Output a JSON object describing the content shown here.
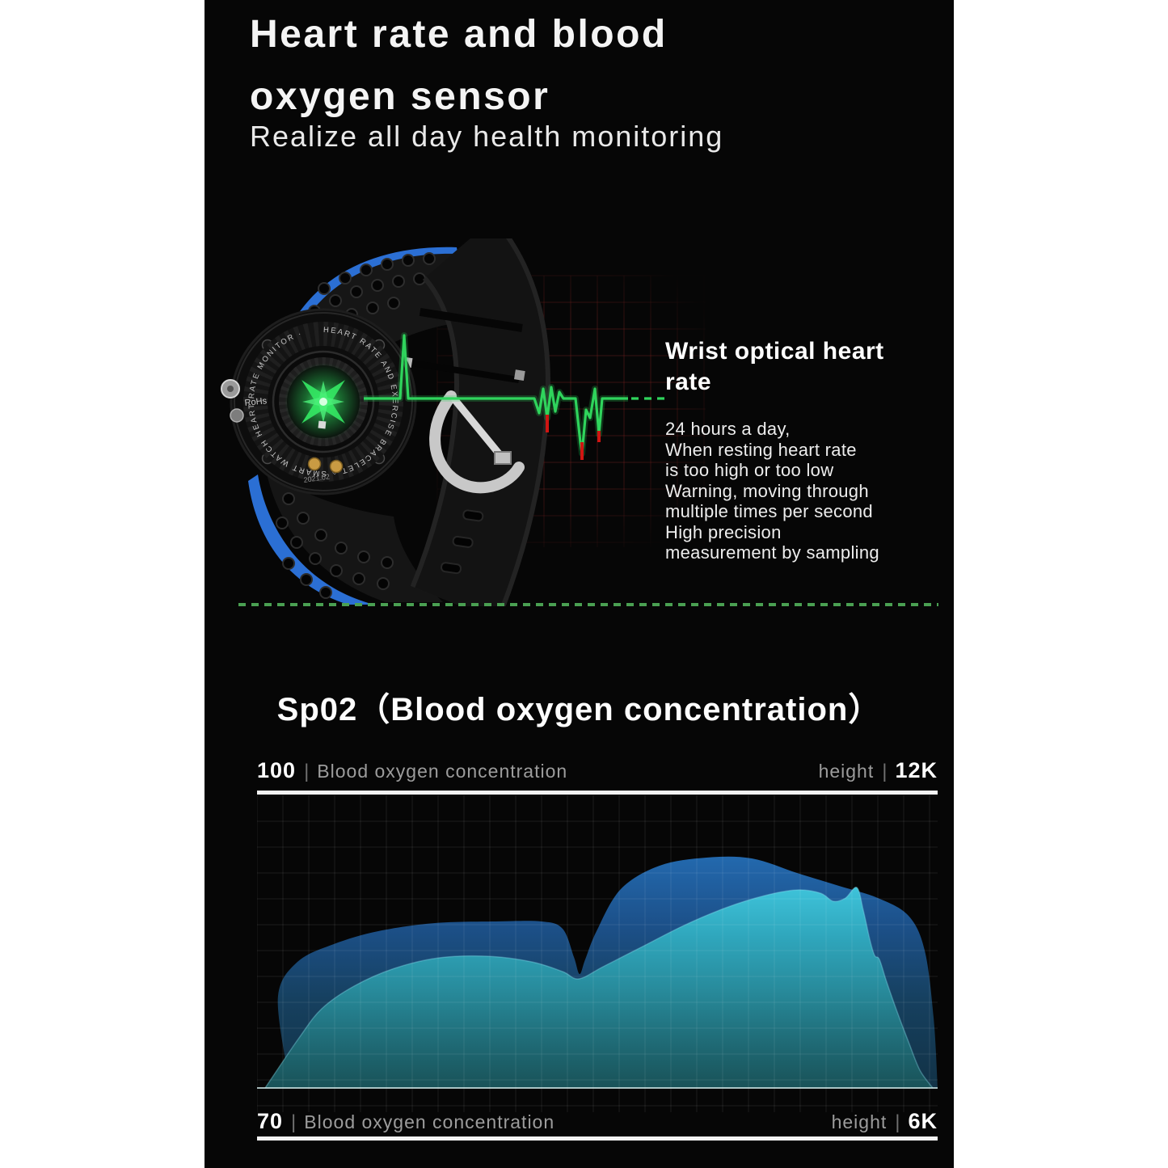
{
  "header": {
    "title_line1": "Heart rate and blood",
    "title_line2": "oxygen sensor",
    "subtitle": "Realize all day health monitoring"
  },
  "heart_rate_section": {
    "heading_line1": "Wrist optical heart",
    "heading_line2": "rate",
    "body_lines": [
      "24 hours a day,",
      "When resting heart rate",
      "is too high or too low",
      "Warning, moving through",
      "multiple times per second",
      "High precision",
      "measurement by sampling"
    ],
    "watch": {
      "ring_text": "HEART RATE AND EXERCISE BRACELET ⌂ SMART WATCH HEART RATE MONITOR ·",
      "rohs_label": "RoHs",
      "date_label": "2021.02",
      "accent_blue": "#2b6fd4",
      "sensor_green": "#34e663"
    },
    "ecg": {
      "color": "#2fd45c",
      "red_color": "#cf1512",
      "main_points": [
        [
          177,
          198
        ],
        [
          222,
          198
        ],
        [
          227,
          120
        ],
        [
          232,
          198
        ],
        [
          388,
          198
        ],
        [
          394,
          216
        ],
        [
          399,
          186
        ],
        [
          404,
          222
        ],
        [
          409,
          184
        ],
        [
          414,
          214
        ],
        [
          419,
          190
        ],
        [
          424,
          198
        ],
        [
          439,
          198
        ],
        [
          445,
          252
        ],
        [
          447,
          266
        ],
        [
          452,
          212
        ],
        [
          457,
          222
        ],
        [
          463,
          186
        ],
        [
          468,
          242
        ],
        [
          472,
          198
        ],
        [
          504,
          198
        ]
      ],
      "dash_segment": [
        508,
        198,
        552,
        198
      ],
      "red_segments": [
        [
          404,
          218,
          404,
          240
        ],
        [
          447,
          252,
          447,
          274
        ],
        [
          468,
          238,
          468,
          252
        ]
      ]
    }
  },
  "divider_color": "#4aa052",
  "spo2_section": {
    "heading": "Sp02（Blood oxygen concentration）",
    "separator": "|",
    "top_left_value": "100",
    "top_left_label": "Blood oxygen concentration",
    "top_right_label": "height",
    "top_right_value": "12K",
    "bottom_left_value": "70",
    "bottom_left_label": "Blood oxygen concentration",
    "bottom_right_label": "height",
    "bottom_right_value": "6K"
  },
  "chart_data": {
    "type": "area",
    "title": "Sp02（Blood oxygen concentration）",
    "y_axis": {
      "top_label": "100",
      "bottom_label": "70",
      "meaning": "Blood oxygen concentration"
    },
    "height_axis": {
      "top_label": "12K",
      "bottom_label": "6K"
    },
    "grid": true,
    "grid_color": "rgba(255,255,255,0.09)",
    "plot_size": [
      842,
      392
    ],
    "baseline_y": 362,
    "series": [
      {
        "name": "outer-envelope",
        "color_top": "#2369ae",
        "color_bottom": "#123246",
        "points": [
          [
            36,
            334
          ],
          [
            26,
            248
          ],
          [
            50,
            206
          ],
          [
            95,
            184
          ],
          [
            150,
            168
          ],
          [
            220,
            158
          ],
          [
            295,
            156
          ],
          [
            352,
            156
          ],
          [
            378,
            165
          ],
          [
            392,
            200
          ],
          [
            399,
            221
          ],
          [
            406,
            203
          ],
          [
            420,
            168
          ],
          [
            450,
            116
          ],
          [
            498,
            87
          ],
          [
            556,
            77
          ],
          [
            612,
            78
          ],
          [
            668,
            96
          ],
          [
            720,
            112
          ],
          [
            768,
            127
          ],
          [
            806,
            149
          ],
          [
            826,
            192
          ],
          [
            837,
            275
          ],
          [
            842,
            362
          ]
        ]
      },
      {
        "name": "inner-area",
        "color_top": "#3ec3da",
        "color_bottom": "#195258",
        "points": [
          [
            10,
            362
          ],
          [
            52,
            300
          ],
          [
            80,
            264
          ],
          [
            120,
            236
          ],
          [
            170,
            214
          ],
          [
            225,
            201
          ],
          [
            285,
            199
          ],
          [
            340,
            206
          ],
          [
            378,
            218
          ],
          [
            398,
            227
          ],
          [
            428,
            212
          ],
          [
            475,
            188
          ],
          [
            528,
            161
          ],
          [
            580,
            139
          ],
          [
            628,
            124
          ],
          [
            668,
            117
          ],
          [
            697,
            121
          ],
          [
            713,
            131
          ],
          [
            728,
            127
          ],
          [
            742,
            114
          ],
          [
            750,
            142
          ],
          [
            758,
            178
          ],
          [
            764,
            198
          ],
          [
            770,
            203
          ],
          [
            779,
            231
          ],
          [
            792,
            268
          ],
          [
            806,
            305
          ],
          [
            820,
            340
          ],
          [
            836,
            362
          ]
        ]
      }
    ]
  }
}
